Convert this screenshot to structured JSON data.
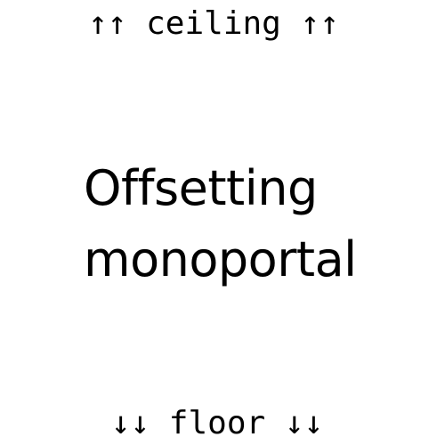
{
  "top_label": "↑↑ ceiling ↑↑",
  "title": {
    "line1": "Offsetting",
    "line2": "monoportal"
  },
  "bottom_label": "↓↓ floor ↓↓"
}
